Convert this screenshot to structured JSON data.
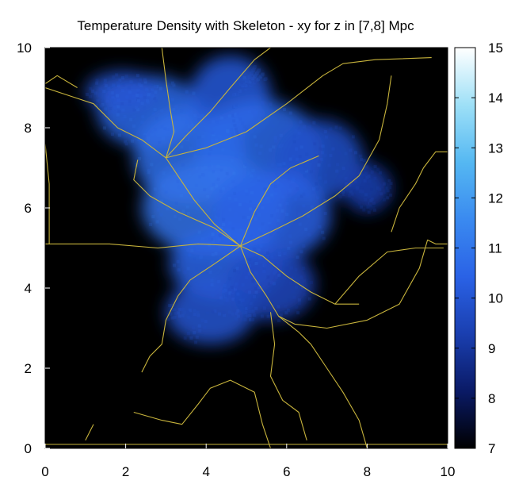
{
  "chart_data": {
    "type": "heatmap",
    "title": "Temperature Density with Skeleton - xy for z in [7,8] Mpc",
    "xlabel": "",
    "ylabel": "",
    "xlim": [
      0,
      10
    ],
    "ylim": [
      0,
      10
    ],
    "x_ticks": [
      "0",
      "2",
      "4",
      "6",
      "8",
      "10"
    ],
    "y_ticks": [
      "0",
      "2",
      "4",
      "6",
      "8",
      "10"
    ],
    "colorbar": {
      "range": [
        7,
        15
      ],
      "ticks": [
        "7",
        "8",
        "9",
        "10",
        "11",
        "12",
        "13",
        "14",
        "15"
      ],
      "colors": [
        "#000000",
        "#0a1a66",
        "#1a3fb0",
        "#2a62e6",
        "#3a8af0",
        "#55b8f2",
        "#9ee0f7",
        "#ffffff"
      ]
    },
    "background_color": "#000000",
    "skeleton_color": "#c8b43c",
    "density_blobs": [
      {
        "x": 2.6,
        "y": 8.4,
        "rx": 1.3,
        "ry": 0.9,
        "v": 10.6
      },
      {
        "x": 3.6,
        "y": 7.3,
        "rx": 1.4,
        "ry": 1.2,
        "v": 10.8
      },
      {
        "x": 4.6,
        "y": 8.8,
        "rx": 1.0,
        "ry": 1.0,
        "v": 10.2
      },
      {
        "x": 5.3,
        "y": 7.4,
        "rx": 1.6,
        "ry": 1.3,
        "v": 10.6
      },
      {
        "x": 6.8,
        "y": 7.2,
        "rx": 1.1,
        "ry": 1.0,
        "v": 9.8
      },
      {
        "x": 4.2,
        "y": 6.0,
        "rx": 1.8,
        "ry": 1.2,
        "v": 10.9
      },
      {
        "x": 5.6,
        "y": 5.8,
        "rx": 1.5,
        "ry": 1.1,
        "v": 10.4
      },
      {
        "x": 4.5,
        "y": 4.6,
        "rx": 1.4,
        "ry": 0.9,
        "v": 10.5
      },
      {
        "x": 4.1,
        "y": 3.4,
        "rx": 1.1,
        "ry": 0.8,
        "v": 10.0
      },
      {
        "x": 5.6,
        "y": 4.1,
        "rx": 1.1,
        "ry": 0.9,
        "v": 9.6
      },
      {
        "x": 1.9,
        "y": 8.9,
        "rx": 0.9,
        "ry": 0.5,
        "v": 10.0
      },
      {
        "x": 8.0,
        "y": 6.5,
        "rx": 0.6,
        "ry": 0.6,
        "v": 9.3
      }
    ],
    "skeleton_segments": [
      [
        [
          4.85,
          5.05
        ],
        [
          4.2,
          5.6
        ],
        [
          3.7,
          6.2
        ],
        [
          3.3,
          6.8
        ],
        [
          3.0,
          7.25
        ]
      ],
      [
        [
          3.0,
          7.25
        ],
        [
          2.4,
          7.7
        ],
        [
          1.8,
          8.0
        ],
        [
          1.2,
          8.6
        ],
        [
          0.6,
          8.8
        ],
        [
          0.0,
          9.0
        ]
      ],
      [
        [
          3.0,
          7.25
        ],
        [
          3.2,
          7.9
        ],
        [
          3.1,
          8.5
        ],
        [
          3.0,
          9.2
        ],
        [
          2.9,
          10.0
        ]
      ],
      [
        [
          3.0,
          7.25
        ],
        [
          3.5,
          7.8
        ],
        [
          4.1,
          8.4
        ],
        [
          4.6,
          9.0
        ],
        [
          5.2,
          9.7
        ],
        [
          5.6,
          10.0
        ]
      ],
      [
        [
          3.0,
          7.25
        ],
        [
          4.0,
          7.5
        ],
        [
          5.0,
          7.9
        ],
        [
          6.0,
          8.6
        ],
        [
          6.9,
          9.3
        ],
        [
          7.4,
          9.6
        ],
        [
          8.2,
          9.7
        ],
        [
          9.6,
          9.75
        ]
      ],
      [
        [
          4.85,
          5.05
        ],
        [
          5.6,
          5.4
        ],
        [
          6.4,
          5.8
        ],
        [
          7.2,
          6.3
        ],
        [
          7.8,
          6.8
        ],
        [
          8.3,
          7.7
        ],
        [
          8.5,
          8.6
        ],
        [
          8.6,
          9.3
        ]
      ],
      [
        [
          4.85,
          5.05
        ],
        [
          3.8,
          5.1
        ],
        [
          2.8,
          5.0
        ],
        [
          1.6,
          5.1
        ],
        [
          0.0,
          5.1
        ]
      ],
      [
        [
          0.0,
          7.6
        ],
        [
          0.1,
          6.6
        ],
        [
          0.1,
          5.1
        ]
      ],
      [
        [
          4.85,
          5.05
        ],
        [
          4.2,
          4.6
        ],
        [
          3.6,
          4.2
        ],
        [
          3.3,
          3.8
        ],
        [
          3.0,
          3.2
        ],
        [
          2.9,
          2.6
        ],
        [
          2.6,
          2.3
        ],
        [
          2.4,
          1.9
        ]
      ],
      [
        [
          4.85,
          5.05
        ],
        [
          5.1,
          4.4
        ],
        [
          5.5,
          3.8
        ],
        [
          5.8,
          3.3
        ],
        [
          6.3,
          2.9
        ],
        [
          6.6,
          2.6
        ]
      ],
      [
        [
          5.8,
          3.3
        ],
        [
          6.2,
          3.1
        ],
        [
          7.0,
          3.0
        ],
        [
          8.0,
          3.2
        ],
        [
          8.8,
          3.6
        ],
        [
          9.3,
          4.5
        ],
        [
          9.5,
          5.2
        ],
        [
          9.7,
          5.1
        ],
        [
          10.0,
          5.1
        ]
      ],
      [
        [
          5.6,
          3.4
        ],
        [
          5.7,
          2.6
        ],
        [
          5.6,
          1.8
        ],
        [
          5.9,
          1.2
        ],
        [
          6.3,
          0.9
        ],
        [
          6.5,
          0.2
        ]
      ],
      [
        [
          6.6,
          2.6
        ],
        [
          7.0,
          2.0
        ],
        [
          7.4,
          1.4
        ],
        [
          7.8,
          0.7
        ],
        [
          8.0,
          0.0
        ]
      ],
      [
        [
          2.2,
          0.9
        ],
        [
          2.9,
          0.7
        ],
        [
          3.4,
          0.6
        ],
        [
          3.8,
          1.1
        ],
        [
          4.1,
          1.5
        ],
        [
          4.6,
          1.7
        ],
        [
          5.2,
          1.4
        ],
        [
          5.4,
          0.6
        ],
        [
          5.6,
          0.0
        ]
      ],
      [
        [
          4.85,
          5.05
        ],
        [
          5.2,
          5.9
        ],
        [
          5.6,
          6.6
        ],
        [
          6.1,
          7.0
        ],
        [
          6.8,
          7.3
        ]
      ],
      [
        [
          4.85,
          5.05
        ],
        [
          5.4,
          4.8
        ],
        [
          6.0,
          4.3
        ],
        [
          6.6,
          3.9
        ],
        [
          7.2,
          3.6
        ],
        [
          7.8,
          3.6
        ]
      ],
      [
        [
          7.2,
          3.6
        ],
        [
          7.8,
          4.3
        ],
        [
          8.5,
          4.9
        ],
        [
          9.2,
          5.0
        ],
        [
          9.9,
          5.0
        ]
      ],
      [
        [
          8.6,
          5.4
        ],
        [
          8.8,
          6.0
        ],
        [
          9.2,
          6.6
        ],
        [
          9.4,
          7.0
        ],
        [
          9.7,
          7.4
        ],
        [
          10.0,
          7.4
        ]
      ],
      [
        [
          4.85,
          5.05
        ],
        [
          4.2,
          5.5
        ],
        [
          3.3,
          5.9
        ],
        [
          2.6,
          6.3
        ],
        [
          2.2,
          6.7
        ],
        [
          2.3,
          7.2
        ]
      ],
      [
        [
          0.0,
          0.1
        ],
        [
          2.0,
          0.1
        ],
        [
          4.0,
          0.1
        ],
        [
          6.0,
          0.1
        ],
        [
          8.0,
          0.1
        ],
        [
          10.0,
          0.1
        ]
      ],
      [
        [
          1.2,
          0.6
        ],
        [
          1.0,
          0.2
        ]
      ],
      [
        [
          0.0,
          9.1
        ],
        [
          0.3,
          9.3
        ],
        [
          0.8,
          9.0
        ]
      ]
    ]
  }
}
